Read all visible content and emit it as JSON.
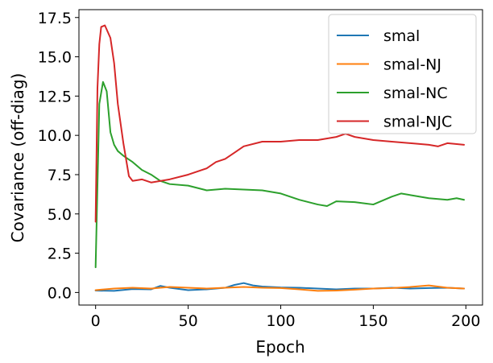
{
  "chart_data": {
    "type": "line",
    "title": "",
    "xlabel": "Epoch",
    "ylabel": "Covariance (off-diag)",
    "xlim": [
      -9,
      209
    ],
    "ylim": [
      -0.8,
      18.0
    ],
    "xticks": [
      0,
      50,
      100,
      150,
      200
    ],
    "xtick_labels": [
      "0",
      "50",
      "100",
      "150",
      "200"
    ],
    "yticks": [
      0.0,
      2.5,
      5.0,
      7.5,
      10.0,
      12.5,
      15.0,
      17.5
    ],
    "ytick_labels": [
      "0.0",
      "2.5",
      "5.0",
      "7.5",
      "10.0",
      "12.5",
      "15.0",
      "17.5"
    ],
    "grid": false,
    "legend_position": "top-right",
    "series": [
      {
        "name": "smal",
        "color": "#1f77b4",
        "x": [
          0,
          10,
          20,
          30,
          35,
          40,
          50,
          60,
          70,
          75,
          80,
          85,
          90,
          100,
          110,
          120,
          130,
          140,
          150,
          160,
          170,
          180,
          190,
          199
        ],
        "y": [
          0.12,
          0.1,
          0.22,
          0.2,
          0.42,
          0.3,
          0.15,
          0.2,
          0.3,
          0.48,
          0.6,
          0.45,
          0.38,
          0.32,
          0.3,
          0.25,
          0.2,
          0.25,
          0.25,
          0.3,
          0.25,
          0.28,
          0.3,
          0.25
        ]
      },
      {
        "name": "smal-NJ",
        "color": "#ff7f0e",
        "x": [
          0,
          10,
          20,
          30,
          40,
          50,
          60,
          70,
          80,
          90,
          100,
          110,
          120,
          130,
          140,
          150,
          160,
          170,
          180,
          190,
          199
        ],
        "y": [
          0.15,
          0.25,
          0.3,
          0.25,
          0.35,
          0.3,
          0.25,
          0.3,
          0.35,
          0.3,
          0.28,
          0.2,
          0.1,
          0.12,
          0.18,
          0.25,
          0.28,
          0.35,
          0.45,
          0.3,
          0.25
        ]
      },
      {
        "name": "smal-NC",
        "color": "#2ca02c",
        "x": [
          0,
          2,
          4,
          6,
          8,
          10,
          12,
          15,
          20,
          25,
          30,
          35,
          40,
          50,
          60,
          70,
          80,
          90,
          100,
          110,
          120,
          125,
          130,
          140,
          150,
          160,
          165,
          170,
          180,
          190,
          195,
          199
        ],
        "y": [
          1.6,
          12.0,
          13.4,
          12.8,
          10.2,
          9.4,
          9.0,
          8.7,
          8.3,
          7.8,
          7.5,
          7.1,
          6.9,
          6.8,
          6.5,
          6.6,
          6.55,
          6.5,
          6.3,
          5.9,
          5.6,
          5.5,
          5.8,
          5.75,
          5.6,
          6.1,
          6.3,
          6.2,
          6.0,
          5.9,
          6.0,
          5.9
        ]
      },
      {
        "name": "smal-NJC",
        "color": "#d62728",
        "x": [
          0,
          1,
          2,
          3,
          5,
          8,
          10,
          12,
          15,
          18,
          20,
          25,
          30,
          40,
          50,
          60,
          65,
          70,
          75,
          80,
          90,
          100,
          110,
          120,
          130,
          135,
          140,
          150,
          160,
          170,
          180,
          185,
          190,
          199
        ],
        "y": [
          4.5,
          13.0,
          15.8,
          16.9,
          17.0,
          16.2,
          14.6,
          12.0,
          9.5,
          7.4,
          7.1,
          7.2,
          7.0,
          7.2,
          7.5,
          7.9,
          8.3,
          8.5,
          8.9,
          9.3,
          9.6,
          9.6,
          9.7,
          9.7,
          9.9,
          10.1,
          9.9,
          9.7,
          9.6,
          9.5,
          9.4,
          9.3,
          9.5,
          9.4
        ]
      }
    ]
  }
}
